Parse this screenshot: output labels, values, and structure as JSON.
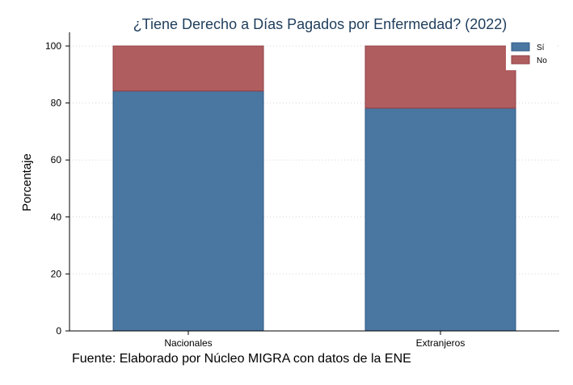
{
  "chart_data": {
    "type": "bar",
    "stacked": true,
    "title": "¿Tiene Derecho a Días Pagados por Enfermedad? (2022)",
    "xlabel": "",
    "ylabel": "Porcentaje",
    "source_note": "Fuente: Elaborado por Núcleo MIGRA con datos de la ENE",
    "categories": [
      "Nacionales",
      "Extranjeros"
    ],
    "series": [
      {
        "name": "Sí",
        "values": [
          84.2,
          78.2
        ],
        "color": "#4a77a2"
      },
      {
        "name": "No",
        "values": [
          15.8,
          21.8
        ],
        "color": "#b05d60"
      }
    ],
    "ylim": [
      0,
      100
    ],
    "yticks": [
      0,
      20,
      40,
      60,
      80,
      100
    ],
    "grid": true,
    "legend_position": "top-right"
  }
}
